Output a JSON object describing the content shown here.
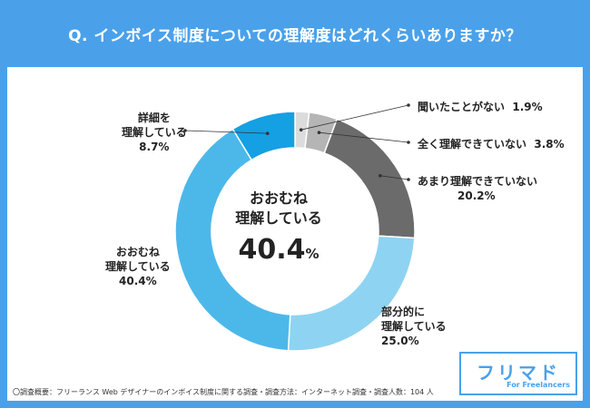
{
  "title": "Q. インボイス制度についての理解度はどれくらいありますか？",
  "center": {
    "line1": "おおむね",
    "line2": "理解している",
    "value": "40.4",
    "unit": "%"
  },
  "footnote": "〇調査概要：フリーランス Web デザイナーのインボイス制度に関する調査・調査方法：インターネット調査・調査人数：104 人",
  "logo": {
    "main": "フリマド",
    "sub": "For Freelancers"
  },
  "chart_data": {
    "type": "pie",
    "subtype": "donut",
    "title": "Q. インボイス制度についての理解度はどれくらいありますか？",
    "unit": "%",
    "slices": [
      {
        "label": "聞いたことがない",
        "value": 1.9,
        "color": "#dcdcdc",
        "display": "1.9%"
      },
      {
        "label": "全く理解できていない",
        "value": 3.8,
        "color": "#b5b5b5",
        "display": "3.8%"
      },
      {
        "label": "あまり理解できていない",
        "value": 20.2,
        "color": "#6b6b6b",
        "display": "20.2%"
      },
      {
        "label": "部分的に理解している",
        "value": 25.0,
        "color": "#8fd3f2",
        "display": "25.0%"
      },
      {
        "label": "おおむね理解している",
        "value": 40.4,
        "color": "#4cb8ea",
        "display": "40.4%"
      },
      {
        "label": "詳細を理解している",
        "value": 8.7,
        "color": "#14a0e3",
        "display": "8.7%"
      }
    ]
  }
}
